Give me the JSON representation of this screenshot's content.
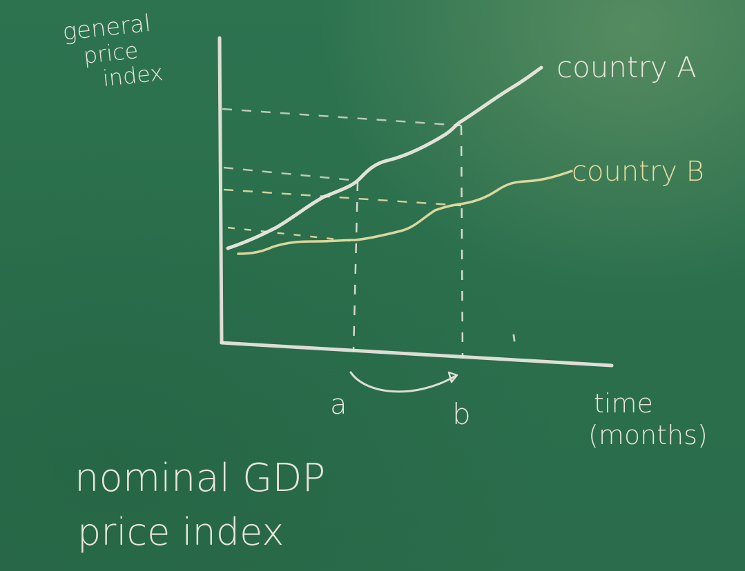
{
  "board": {
    "y_axis_label_lines": [
      "general",
      "price",
      "index"
    ],
    "x_axis_label_lines": [
      "time",
      "(months)"
    ],
    "series": [
      {
        "name": "country A",
        "color": "#e8e4dc"
      },
      {
        "name": "country B",
        "color": "#e6dca0"
      }
    ],
    "x_markers": [
      "a",
      "b"
    ],
    "footer_lines": [
      "nominal GDP",
      "price index"
    ],
    "colors": {
      "board": "#2a6f4e",
      "white_chalk": "#e8e4dc",
      "yellow_chalk": "#e6dca0"
    }
  }
}
